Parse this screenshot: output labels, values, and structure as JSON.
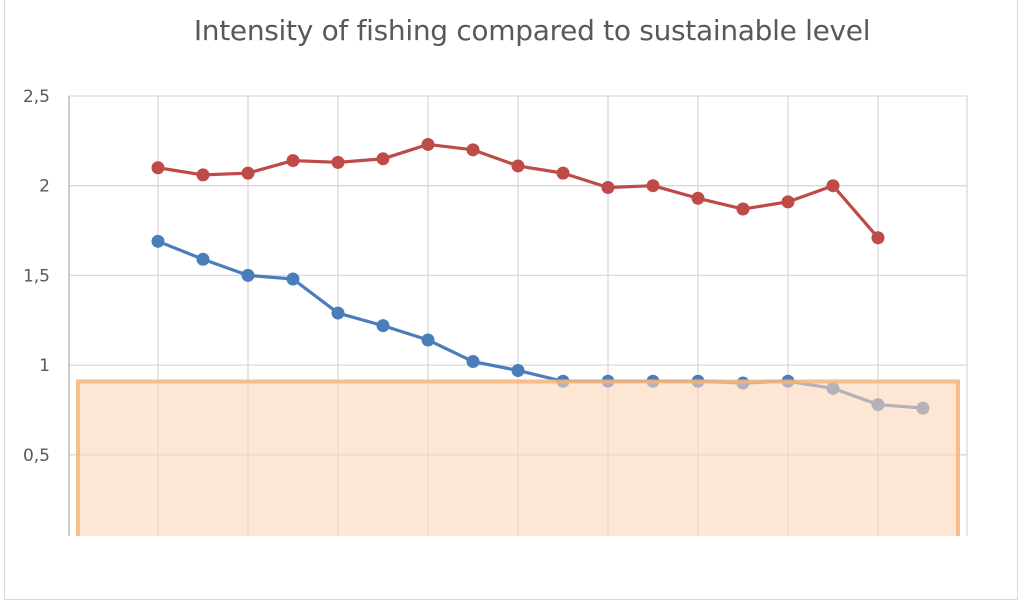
{
  "chart_data": {
    "type": "line",
    "title": "Intensity of fishing compared to sustainable level",
    "xlabel": "",
    "ylabel": "",
    "ylim": [
      0,
      2.5
    ],
    "yticks": [
      "0,5",
      "1",
      "1,5",
      "2",
      "2,5"
    ],
    "grid": true,
    "legend": "none",
    "series": [
      {
        "color": "#be4b48",
        "values": [
          2.1,
          2.06,
          2.07,
          2.14,
          2.13,
          2.15,
          2.23,
          2.2,
          2.11,
          2.07,
          1.99,
          2.0,
          1.93,
          1.87,
          1.91,
          2.0,
          1.71
        ]
      },
      {
        "color": "#4a7ebb",
        "values": [
          1.69,
          1.59,
          1.5,
          1.48,
          1.29,
          1.22,
          1.14,
          1.02,
          0.97,
          0.91,
          0.91,
          0.91,
          0.91,
          0.9,
          0.91,
          0.87,
          0.78,
          0.76
        ]
      }
    ],
    "highlight_region": {
      "ymax": 0.92,
      "fill": "#fbd5b5",
      "border": "#f7b47a"
    }
  }
}
